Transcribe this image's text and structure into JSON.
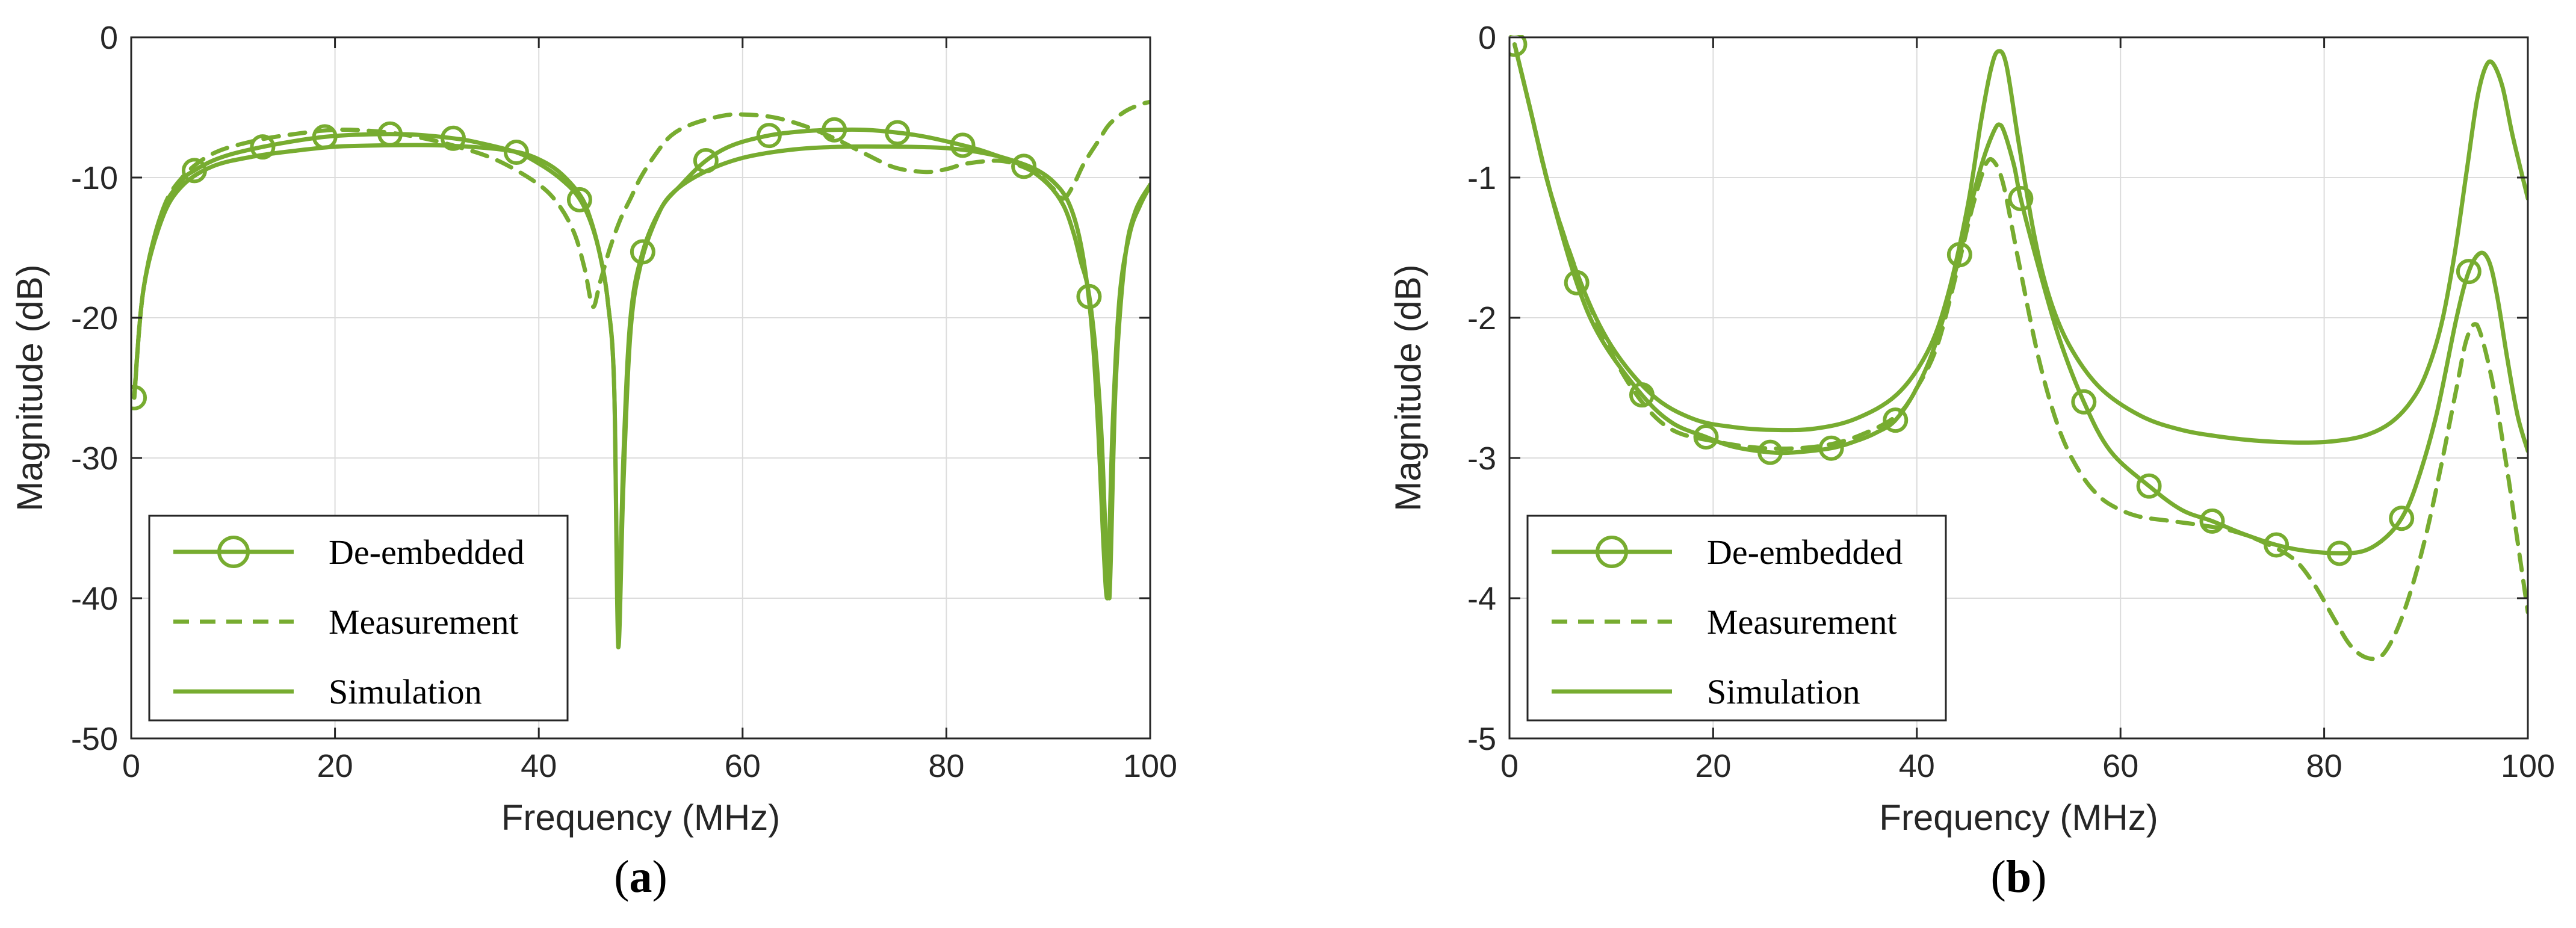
{
  "chart_data": [
    {
      "type": "line",
      "panel_label": "a",
      "xlabel": "Frequency (MHz)",
      "ylabel": "Magnitude (dB)",
      "xlim": [
        0,
        100
      ],
      "ylim": [
        -50,
        0
      ],
      "xticks": [
        0,
        20,
        40,
        60,
        80,
        100
      ],
      "yticks": [
        0,
        -10,
        -20,
        -30,
        -40,
        -50
      ],
      "grid": true,
      "color": "#77ac30",
      "legend": {
        "position": "bottom-left",
        "entries": [
          "De-embedded",
          "Measurement",
          "Simulation"
        ]
      },
      "series": [
        {
          "name": "De-embedded",
          "style": "solid-circle",
          "x": [
            0.3,
            1.2,
            3,
            5,
            6.2,
            8,
            10,
            13,
            16,
            19,
            22,
            25.4,
            28,
            31.6,
            34,
            37.8,
            40,
            42,
            43.8,
            45,
            46,
            46.8,
            47.4,
            47.8,
            48.3,
            49,
            50.2,
            52,
            54,
            56.4,
            59,
            62.6,
            66,
            69,
            72,
            75.2,
            78,
            81.6,
            84,
            87.6,
            90,
            91.5,
            92.5,
            93.2,
            93.9,
            94.6,
            95.2,
            95.6,
            96,
            96.6,
            97.5,
            98.5,
            100
          ],
          "y": [
            -25.7,
            -18,
            -12.5,
            -10.2,
            -9.5,
            -8.8,
            -8.3,
            -7.8,
            -7.4,
            -7.1,
            -6.95,
            -6.9,
            -6.95,
            -7.2,
            -7.5,
            -8.2,
            -9,
            -10,
            -11.3,
            -13,
            -15.5,
            -19,
            -25,
            -42,
            -30,
            -20,
            -15.3,
            -12.2,
            -10.5,
            -8.8,
            -7.7,
            -7.0,
            -6.7,
            -6.6,
            -6.6,
            -6.8,
            -7.1,
            -7.7,
            -8.2,
            -9.2,
            -10.5,
            -12,
            -14,
            -16,
            -17.9,
            -22,
            -28,
            -35,
            -40,
            -25,
            -16,
            -12.5,
            -10.5
          ],
          "markers_x": [
            0.3,
            6.2,
            12.9,
            19,
            25.4,
            31.6,
            37.8,
            44,
            50.2,
            56.4,
            62.6,
            69,
            75.2,
            81.6,
            87.6,
            94
          ]
        },
        {
          "name": "Measurement",
          "style": "dashed",
          "x": [
            0.3,
            1.2,
            3,
            5,
            8,
            12,
            16,
            20,
            24,
            28,
            32,
            36,
            40,
            42,
            43.5,
            44.5,
            45.3,
            46,
            47,
            48,
            49,
            50,
            51.5,
            53,
            55,
            58,
            60,
            63,
            66,
            69,
            72,
            75,
            78,
            80,
            82,
            85,
            87,
            89,
            90.5,
            91.5,
            92.5,
            93.5,
            95,
            96,
            97.5,
            99,
            100
          ],
          "y": [
            -25.5,
            -18,
            -12.5,
            -10,
            -8.3,
            -7.4,
            -6.9,
            -6.6,
            -6.7,
            -7.1,
            -7.8,
            -8.8,
            -10.5,
            -12,
            -14,
            -16.5,
            -19.2,
            -17.5,
            -15,
            -13,
            -11.5,
            -10,
            -8.3,
            -7,
            -6.2,
            -5.6,
            -5.5,
            -5.7,
            -6.3,
            -7.2,
            -8.3,
            -9.3,
            -9.6,
            -9.4,
            -9.0,
            -8.8,
            -9.1,
            -9.8,
            -10.8,
            -11.5,
            -10.5,
            -9,
            -7.3,
            -6.2,
            -5.3,
            -4.8,
            -4.6
          ]
        },
        {
          "name": "Simulation",
          "style": "solid",
          "x": [
            0.3,
            1.2,
            3,
            5,
            8,
            12,
            16,
            20,
            25,
            30,
            35,
            38,
            40,
            42,
            44,
            45,
            46,
            46.8,
            47.4,
            47.8,
            48.3,
            49,
            50,
            51.5,
            53,
            56,
            60,
            65,
            70,
            75,
            80,
            84,
            87,
            89,
            90.5,
            91.8,
            92.8,
            93.6,
            94.3,
            94.9,
            95.4,
            95.8,
            96.3,
            97,
            98,
            99,
            100
          ],
          "y": [
            -25.7,
            -18,
            -13,
            -10.6,
            -9.2,
            -8.5,
            -8.1,
            -7.8,
            -7.7,
            -7.7,
            -7.9,
            -8.2,
            -8.7,
            -9.6,
            -11.2,
            -12.8,
            -15.5,
            -19,
            -25,
            -43.5,
            -32,
            -21,
            -16.2,
            -13,
            -11.2,
            -9.7,
            -8.6,
            -8.0,
            -7.8,
            -7.8,
            -7.9,
            -8.3,
            -8.9,
            -9.5,
            -10.3,
            -11.5,
            -13.5,
            -16.5,
            -21,
            -28,
            -36,
            -40,
            -28,
            -18.5,
            -14,
            -12,
            -10.6
          ]
        }
      ]
    },
    {
      "type": "line",
      "panel_label": "b",
      "xlabel": "Frequency (MHz)",
      "ylabel": "Magnitude (dB)",
      "xlim": [
        0,
        100
      ],
      "ylim": [
        -5,
        0
      ],
      "xticks": [
        0,
        20,
        40,
        60,
        80,
        100
      ],
      "yticks": [
        0,
        -1,
        -2,
        -3,
        -4,
        -5
      ],
      "grid": true,
      "color": "#77ac30",
      "legend": {
        "position": "bottom-left",
        "entries": [
          "De-embedded",
          "Measurement",
          "Simulation"
        ]
      },
      "series": [
        {
          "name": "De-embedded",
          "style": "solid-circle",
          "x": [
            0.5,
            2,
            4,
            6.6,
            9,
            13,
            16,
            19.3,
            22,
            25.6,
            28,
            31.6,
            34,
            36,
            37.9,
            40,
            42,
            44.2,
            46,
            47.5,
            48.3,
            49.5,
            50.2,
            52,
            54,
            56.4,
            59,
            62.8,
            66,
            69,
            72,
            75.3,
            78,
            81.5,
            84,
            86,
            87.6,
            89,
            91,
            93,
            94.2,
            95.3,
            96.2,
            97,
            98,
            99,
            100
          ],
          "y": [
            -0.05,
            -0.5,
            -1.1,
            -1.75,
            -2.15,
            -2.55,
            -2.75,
            -2.85,
            -2.92,
            -2.96,
            -2.96,
            -2.93,
            -2.88,
            -2.82,
            -2.73,
            -2.5,
            -2.15,
            -1.55,
            -1.0,
            -0.68,
            -0.63,
            -0.9,
            -1.15,
            -1.65,
            -2.15,
            -2.6,
            -2.95,
            -3.2,
            -3.37,
            -3.45,
            -3.54,
            -3.62,
            -3.66,
            -3.68,
            -3.66,
            -3.57,
            -3.43,
            -3.2,
            -2.7,
            -2.0,
            -1.67,
            -1.54,
            -1.6,
            -1.85,
            -2.3,
            -2.7,
            -2.95
          ],
          "markers_x": [
            0.5,
            6.6,
            13,
            19.3,
            25.6,
            31.6,
            37.9,
            44.2,
            50.2,
            56.4,
            62.8,
            69,
            75.3,
            81.5,
            87.6,
            94.2
          ]
        },
        {
          "name": "Measurement",
          "style": "dashed",
          "x": [
            0.5,
            2,
            4,
            7,
            10,
            13,
            16,
            20,
            25,
            30,
            34,
            38,
            40,
            42,
            44,
            45.5,
            46.8,
            47.5,
            48.5,
            50,
            52,
            54,
            56,
            58,
            60,
            62,
            65,
            68,
            71,
            74,
            77,
            79,
            81,
            82.5,
            84,
            85.5,
            87,
            88.5,
            90,
            91.5,
            93,
            94,
            95,
            96.5,
            98,
            99,
            100
          ],
          "y": [
            -0.05,
            -0.5,
            -1.1,
            -1.75,
            -2.25,
            -2.6,
            -2.8,
            -2.88,
            -2.93,
            -2.92,
            -2.85,
            -2.7,
            -2.5,
            -2.2,
            -1.65,
            -1.2,
            -0.9,
            -0.88,
            -1.05,
            -1.6,
            -2.3,
            -2.8,
            -3.1,
            -3.28,
            -3.37,
            -3.42,
            -3.45,
            -3.48,
            -3.52,
            -3.6,
            -3.72,
            -3.9,
            -4.15,
            -4.33,
            -4.42,
            -4.42,
            -4.25,
            -3.95,
            -3.55,
            -3.05,
            -2.5,
            -2.15,
            -2.05,
            -2.45,
            -3.1,
            -3.6,
            -4.1
          ]
        },
        {
          "name": "Simulation",
          "style": "solid",
          "x": [
            0.5,
            2,
            4,
            7,
            10,
            14,
            18,
            22,
            26,
            30,
            34,
            38,
            41,
            43,
            45,
            46.3,
            47.3,
            48,
            48.8,
            50,
            51.5,
            53,
            55,
            58,
            62,
            66,
            70,
            74,
            78,
            81,
            84,
            86.5,
            88.5,
            90,
            91.5,
            92.8,
            94,
            95,
            95.8,
            96.5,
            97.5,
            98.5,
            100
          ],
          "y": [
            -0.05,
            -0.5,
            -1.1,
            -1.75,
            -2.2,
            -2.55,
            -2.72,
            -2.78,
            -2.8,
            -2.79,
            -2.72,
            -2.55,
            -2.25,
            -1.85,
            -1.2,
            -0.6,
            -0.22,
            -0.1,
            -0.2,
            -0.75,
            -1.4,
            -1.85,
            -2.2,
            -2.5,
            -2.7,
            -2.8,
            -2.85,
            -2.88,
            -2.89,
            -2.88,
            -2.84,
            -2.75,
            -2.6,
            -2.4,
            -2.05,
            -1.55,
            -0.95,
            -0.45,
            -0.22,
            -0.18,
            -0.35,
            -0.7,
            -1.15
          ]
        }
      ]
    }
  ]
}
